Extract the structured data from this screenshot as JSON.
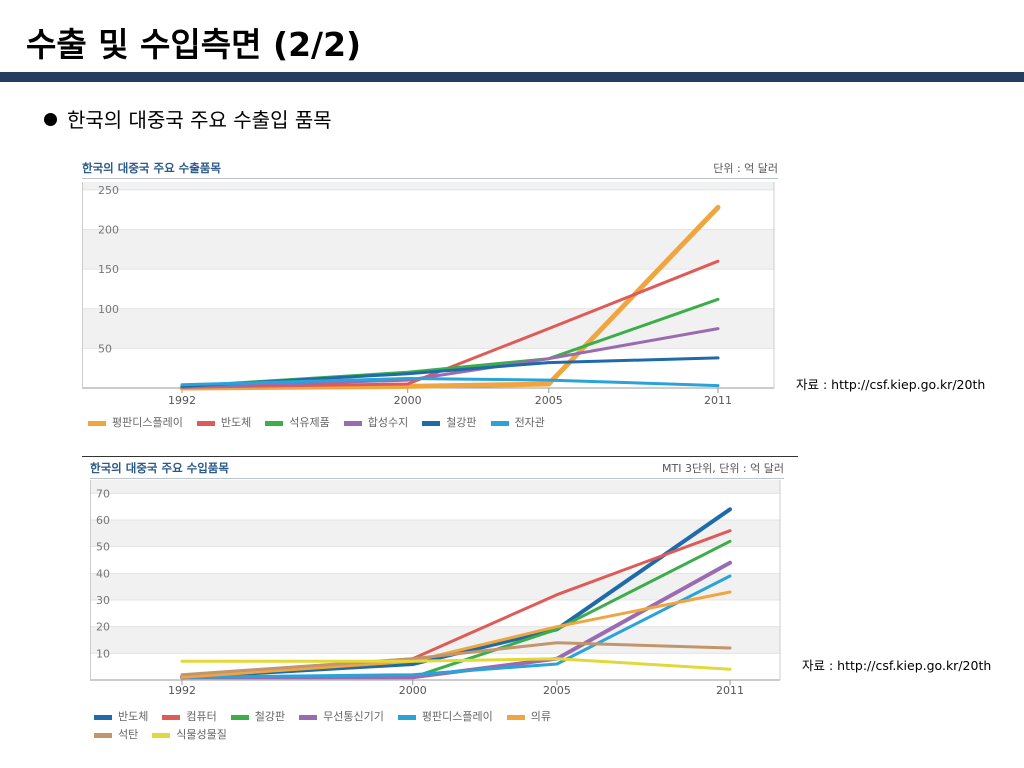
{
  "slide": {
    "title": "수출 및 수입측면 (2/2)",
    "bullet": "한국의 대중국 주요 수출입 품목"
  },
  "colors": {
    "title_bar": "#243f5e",
    "chart_title": "#2c5a8a"
  },
  "charts": [
    {
      "header": "한국의 대중국 주요 수출품목",
      "unit": "단위 : 억 달러",
      "source": "자료 : http://csf.kiep.go.kr/20th"
    },
    {
      "header": "한국의 대중국 주요 수입품목",
      "unit": "MTI 3단위, 단위 : 억 달러",
      "source": "자료 : http://csf.kiep.go.kr/20th"
    }
  ],
  "chart_data": [
    {
      "type": "line",
      "title": "한국의 대중국 주요 수출품목",
      "unit": "단위 : 억 달러",
      "x": [
        1992,
        2000,
        2005,
        2011
      ],
      "ylim": [
        0,
        260
      ],
      "yticks": [
        50,
        100,
        150,
        200,
        250
      ],
      "grid": true,
      "legend_position": "bottom",
      "series": [
        {
          "name": "평판디스플레이",
          "color": "#f0a640",
          "values": [
            0,
            2,
            5,
            228
          ]
        },
        {
          "name": "반도체",
          "color": "#df5b57",
          "values": [
            1,
            5,
            75,
            160
          ]
        },
        {
          "name": "석유제품",
          "color": "#3bae49",
          "values": [
            2,
            20,
            37,
            112
          ]
        },
        {
          "name": "합성수지",
          "color": "#9a6bb0",
          "values": [
            1,
            10,
            37,
            75
          ]
        },
        {
          "name": "철강판",
          "color": "#1f6aa8",
          "values": [
            2,
            18,
            32,
            38
          ]
        },
        {
          "name": "전자관",
          "color": "#2aa3d8",
          "values": [
            4,
            12,
            10,
            3
          ]
        }
      ]
    },
    {
      "type": "line",
      "title": "한국의 대중국 주요 수입품목",
      "unit": "MTI 3단위, 단위 : 억 달러",
      "x": [
        1992,
        2000,
        2005,
        2011
      ],
      "ylim": [
        0,
        75
      ],
      "yticks": [
        10,
        20,
        30,
        40,
        50,
        60,
        70
      ],
      "grid": true,
      "legend_position": "bottom",
      "series": [
        {
          "name": "반도체",
          "color": "#1f6aa8",
          "values": [
            1,
            6,
            19,
            64
          ]
        },
        {
          "name": "컴퓨터",
          "color": "#df5b57",
          "values": [
            1,
            8,
            32,
            56
          ]
        },
        {
          "name": "철강판",
          "color": "#3bae49",
          "values": [
            1,
            1,
            19,
            52
          ]
        },
        {
          "name": "무선통신기기",
          "color": "#9a6bb0",
          "values": [
            1,
            1,
            8,
            44
          ]
        },
        {
          "name": "평판디스플레이",
          "color": "#2aa3d8",
          "values": [
            1,
            2,
            6,
            39
          ]
        },
        {
          "name": "의류",
          "color": "#f0a640",
          "values": [
            1,
            7,
            20,
            33
          ]
        },
        {
          "name": "석탄",
          "color": "#c2956c",
          "values": [
            2,
            8,
            14,
            12
          ]
        },
        {
          "name": "식물성물질",
          "color": "#e2d83a",
          "values": [
            7,
            7,
            8,
            4
          ]
        }
      ]
    }
  ]
}
